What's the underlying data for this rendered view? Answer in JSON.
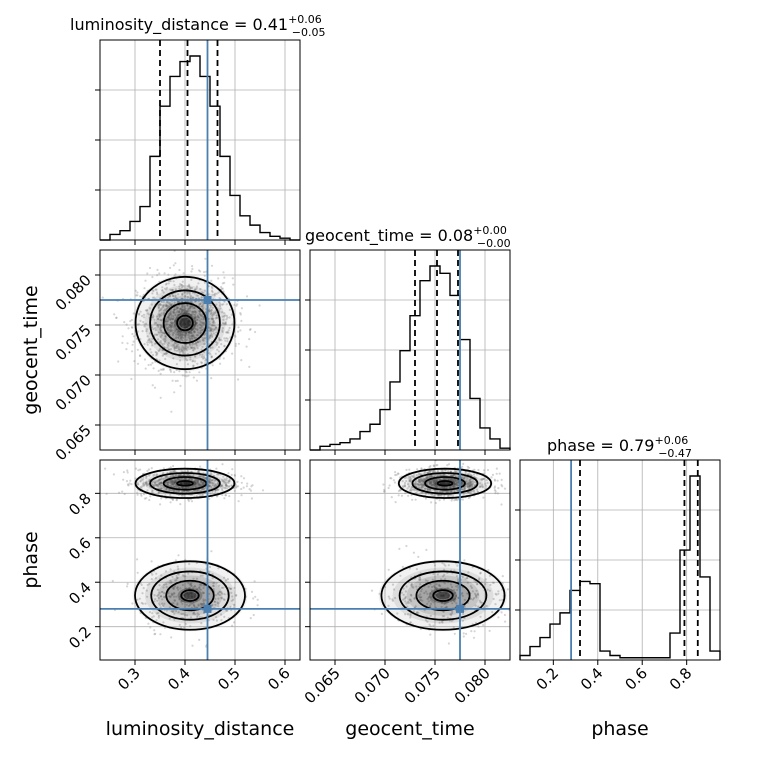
{
  "chart_data": {
    "type": "corner",
    "parameters": [
      {
        "name": "luminosity_distance",
        "title": "luminosity_distance = 0.41",
        "err_plus": "+0.06",
        "err_minus": "−0.05",
        "range": [
          0.23,
          0.63
        ],
        "ticks": [
          0.3,
          0.4,
          0.5,
          0.6
        ],
        "tick_labels": [
          "0.3",
          "0.4",
          "0.5",
          "0.6"
        ],
        "truth": 0.445,
        "quantiles": [
          0.35,
          0.405,
          0.465
        ],
        "hist": {
          "edges": [
            0.23,
            0.25,
            0.27,
            0.29,
            0.31,
            0.33,
            0.35,
            0.37,
            0.39,
            0.41,
            0.43,
            0.45,
            0.47,
            0.49,
            0.51,
            0.53,
            0.55,
            0.57,
            0.59,
            0.61,
            0.63
          ],
          "counts": [
            0,
            3,
            5,
            10,
            18,
            45,
            72,
            88,
            96,
            99,
            88,
            72,
            45,
            24,
            13,
            8,
            4,
            2,
            1,
            0
          ]
        }
      },
      {
        "name": "geocent_time",
        "title": "geocent_time = 0.08",
        "err_plus": "+0.00",
        "err_minus": "−0.00",
        "range": [
          0.0625,
          0.0825
        ],
        "ticks": [
          0.065,
          0.07,
          0.075,
          0.08
        ],
        "tick_labels": [
          "0.065",
          "0.070",
          "0.075",
          "0.080"
        ],
        "truth": 0.0775,
        "quantiles": [
          0.073,
          0.0752,
          0.0773
        ],
        "hist": {
          "edges": [
            0.0625,
            0.0635,
            0.0645,
            0.0655,
            0.0665,
            0.0675,
            0.0685,
            0.0695,
            0.0705,
            0.0715,
            0.0725,
            0.0735,
            0.0745,
            0.0755,
            0.0765,
            0.0775,
            0.0785,
            0.0795,
            0.0805,
            0.0815,
            0.0825
          ],
          "counts": [
            0,
            2,
            3,
            4,
            6,
            10,
            14,
            22,
            37,
            54,
            73,
            92,
            100,
            96,
            84,
            60,
            28,
            12,
            6,
            1
          ]
        }
      },
      {
        "name": "phase",
        "title": "phase = 0.79",
        "err_plus": "+0.06",
        "err_minus": "−0.47",
        "range": [
          0.05,
          0.95
        ],
        "ticks": [
          0.2,
          0.4,
          0.6,
          0.8
        ],
        "tick_labels": [
          "0.2",
          "0.4",
          "0.6",
          "0.8"
        ],
        "truth": 0.28,
        "quantiles": [
          0.32,
          0.79,
          0.85
        ],
        "hist": {
          "edges": [
            0.05,
            0.095,
            0.14,
            0.185,
            0.23,
            0.275,
            0.32,
            0.365,
            0.41,
            0.455,
            0.5,
            0.545,
            0.59,
            0.635,
            0.68,
            0.725,
            0.77,
            0.815,
            0.86,
            0.905,
            0.95
          ],
          "counts": [
            2,
            6,
            10,
            16,
            21,
            31,
            35,
            34,
            4,
            2,
            1,
            1,
            1,
            1,
            1,
            12,
            49,
            82,
            37,
            4
          ]
        }
      }
    ],
    "panels_2d": [
      {
        "x": "luminosity_distance",
        "y": "geocent_time",
        "modes": [
          {
            "x": 0.4,
            "y": 0.0752,
            "sx": 0.045,
            "sy": 0.0021,
            "w": 1.0
          }
        ]
      },
      {
        "x": "luminosity_distance",
        "y": "phase",
        "modes": [
          {
            "x": 0.4,
            "y": 0.845,
            "sx": 0.045,
            "sy": 0.03,
            "w": 0.7
          },
          {
            "x": 0.41,
            "y": 0.34,
            "sx": 0.05,
            "sy": 0.07,
            "w": 0.3
          }
        ]
      },
      {
        "x": "geocent_time",
        "y": "phase",
        "modes": [
          {
            "x": 0.076,
            "y": 0.845,
            "sx": 0.0021,
            "sy": 0.03,
            "w": 0.7
          },
          {
            "x": 0.0758,
            "y": 0.34,
            "sx": 0.0028,
            "sy": 0.07,
            "w": 0.3
          }
        ]
      }
    ],
    "xlabels": [
      "luminosity_distance",
      "geocent_time",
      "phase"
    ],
    "ylabels": [
      "",
      "geocent_time",
      "phase"
    ],
    "grid": true,
    "colors": {
      "truth": "#4a7fb0",
      "contour": "#000000",
      "density": "#000000",
      "grid": "#b0b0b0"
    }
  }
}
